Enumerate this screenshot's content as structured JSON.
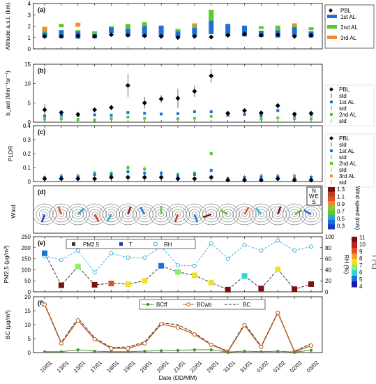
{
  "chart_data": [
    {
      "panel": "(a)",
      "type": "bar",
      "ylabel": "Altitude a.s.l. (km)",
      "ylim": [
        0,
        4
      ],
      "yticks": [
        "0",
        "1",
        "2",
        "3",
        "4"
      ],
      "categories": [
        "10/01",
        "13/01",
        "13/01",
        "17/01",
        "18/01",
        "19/01",
        "20/01",
        "20/01",
        "21/01",
        "22/01",
        "26/01",
        "31/01",
        "31/01",
        "01/02",
        "01/02",
        "02/02",
        "03/02"
      ],
      "legend": [
        "PBL",
        "1st AL",
        "2nd AL",
        "3rd AL"
      ],
      "pbl": [
        1.1,
        1.1,
        1.15,
        1.1,
        1.25,
        1.2,
        1.15,
        1.1,
        1.0,
        1.1,
        1.05,
        1.2,
        1.3,
        1.2,
        1.25,
        1.1,
        1.2
      ],
      "layers": {
        "al1": [
          [
            1.0,
            1.45
          ],
          [
            0.95,
            1.65
          ],
          [
            0.9,
            1.55
          ],
          [
            0.95,
            1.3
          ],
          [
            1.4,
            1.9
          ],
          [
            1.1,
            1.8
          ],
          [
            1.05,
            2.0
          ],
          [
            1.05,
            2.05
          ],
          [
            1.05,
            1.55
          ],
          [
            1.15,
            1.85
          ],
          [
            1.3,
            2.5
          ],
          [
            1.1,
            2.2
          ],
          [
            1.1,
            2.05
          ],
          [
            1.05,
            1.6
          ],
          [
            1.0,
            1.65
          ],
          [
            1.15,
            1.9
          ],
          [
            1.0,
            1.55
          ]
        ],
        "al2": [
          [
            1.45,
            1.6
          ],
          [
            1.9,
            2.2
          ],
          [
            1.55,
            1.65
          ],
          [
            1.3,
            1.55
          ],
          [
            1.9,
            2.0
          ],
          [
            1.8,
            2.2
          ],
          [
            2.0,
            2.35
          ],
          [
            null,
            null
          ],
          [
            1.55,
            1.75
          ],
          [
            1.85,
            2.0
          ],
          [
            2.5,
            3.45
          ],
          [
            null,
            null
          ],
          [
            null,
            null
          ],
          [
            1.75,
            2.0
          ],
          [
            1.65,
            2.05
          ],
          [
            1.9,
            2.05
          ],
          [
            1.65,
            1.9
          ]
        ],
        "al3": [
          [
            1.6,
            1.95
          ],
          [
            null,
            null
          ],
          [
            1.95,
            2.3
          ],
          [
            null,
            null
          ],
          [
            null,
            null
          ],
          [
            null,
            null
          ],
          [
            null,
            null
          ],
          [
            null,
            null
          ],
          [
            null,
            null
          ],
          [
            2.0,
            2.25
          ],
          [
            null,
            null
          ],
          [
            null,
            null
          ],
          [
            null,
            null
          ],
          [
            null,
            null
          ],
          [
            null,
            null
          ],
          [
            2.05,
            2.25
          ],
          [
            null,
            null
          ]
        ]
      }
    },
    {
      "panel": "(b)",
      "type": "scatter",
      "ylabel": "b_ael (Mm⁻¹sr⁻¹)",
      "ylim": [
        0,
        15
      ],
      "yticks": [
        "0",
        "5",
        "10",
        "15"
      ],
      "legend": [
        "PBL",
        "std",
        "1st AL",
        "std",
        "2nd AL",
        "std"
      ],
      "pbl": [
        3.2,
        2.5,
        2.0,
        3.2,
        3.8,
        9.5,
        5.0,
        6.0,
        6.2,
        8.0,
        12.0,
        2.3,
        3.0,
        2.4,
        4.3,
        2.1,
        2.3
      ],
      "pbl_std": [
        1.5,
        0.5,
        0.5,
        0.6,
        0.7,
        3.0,
        1.5,
        1.0,
        2.5,
        1.5,
        1.8,
        0.4,
        0.5,
        0.4,
        0.8,
        0.3,
        0.4
      ],
      "al1": [
        1.6,
        1.8,
        1.7,
        1.9,
        1.8,
        2.5,
        2.3,
        2.1,
        2.2,
        2.7,
        2.7,
        1.8,
        2.0,
        1.6,
        3.0,
        1.7,
        1.9
      ],
      "al2": [
        0.8,
        0.9,
        0.7,
        0.6,
        0.9,
        1.3,
        1.0,
        null,
        0.9,
        1.0,
        1.5,
        null,
        null,
        0.8,
        1.1,
        0.9,
        0.9
      ]
    },
    {
      "panel": "(c)",
      "type": "scatter",
      "ylabel": "PLDR",
      "ylim": [
        0,
        0.4
      ],
      "yticks": [
        "0",
        "0.1",
        "0.2",
        "0.3",
        "0.4"
      ],
      "legend": [
        "PBL",
        "std",
        "1st AL",
        "std",
        "2nd AL",
        "std",
        "3rd AL",
        "std"
      ],
      "pbl": [
        0.02,
        0.02,
        0.02,
        0.02,
        0.03,
        0.03,
        0.03,
        0.03,
        0.02,
        0.02,
        0.03,
        0.01,
        0.01,
        0.01,
        0.02,
        0.01,
        0.01
      ],
      "al1": [
        0.02,
        0.03,
        0.03,
        0.05,
        0.05,
        0.07,
        0.06,
        0.06,
        0.04,
        0.05,
        0.08,
        0.02,
        0.03,
        0.03,
        0.03,
        0.02,
        0.03
      ],
      "al2": [
        0.03,
        0.04,
        0.04,
        0.06,
        0.06,
        0.1,
        0.09,
        null,
        0.05,
        0.06,
        0.2,
        null,
        null,
        0.04,
        0.04,
        0.04,
        0.03
      ],
      "al3": [
        0.03,
        null,
        0.04,
        null,
        null,
        null,
        null,
        null,
        null,
        0.06,
        null,
        null,
        null,
        null,
        null,
        0.04,
        null
      ]
    },
    {
      "panel": "(d)",
      "type": "wind-rose",
      "ylabel": "Wind",
      "colorbar_label": "Wind speed (m/s)",
      "colorbar_ticks": [
        "1.3",
        "1.1",
        "0.9",
        "0.7",
        "0.5",
        "0.3"
      ],
      "compass": [
        "N",
        "W",
        "E",
        "S"
      ]
    },
    {
      "panel": "(e)",
      "type": "line",
      "ylabel_left": "PM2.5 (μg/m³)",
      "ylabel_right": "RH (%)",
      "ylabel_color": "T (°C)",
      "ylim_left": [
        0,
        250
      ],
      "ylim_right": [
        0,
        100
      ],
      "yticks_left": [
        "0",
        "50",
        "100",
        "150",
        "200",
        "250"
      ],
      "yticks_right": [
        "0",
        "20",
        "40",
        "60",
        "80",
        "100"
      ],
      "colorbar_ticks": [
        "11",
        "10",
        "9",
        "8",
        "7",
        "6",
        "5",
        "4"
      ],
      "legend": [
        "PM2.5",
        "T",
        "RH"
      ],
      "pm25": [
        175,
        30,
        115,
        32,
        38,
        35,
        50,
        118,
        90,
        75,
        42,
        10,
        72,
        15,
        102,
        12,
        35
      ],
      "temperature": [
        5,
        10.5,
        7.5,
        10,
        9,
        8.5,
        8.5,
        5,
        7,
        8,
        8.5,
        10.5,
        6.5,
        10.5,
        8,
        11,
        10.5
      ],
      "rh": [
        65,
        58,
        75,
        35,
        70,
        62,
        62,
        82,
        48,
        47,
        88,
        60,
        85,
        75,
        93,
        75,
        82
      ]
    },
    {
      "panel": "(f)",
      "type": "line",
      "ylabel": "BC (μg/m³)",
      "ylim": [
        0,
        20
      ],
      "yticks": [
        "0",
        "5",
        "10",
        "15",
        "20"
      ],
      "legend": [
        "BCff",
        "BCwb",
        "BC"
      ],
      "xlabel": "Date (DD/MM)",
      "categories": [
        "10/01",
        "13/01",
        "13/01",
        "17/01",
        "18/01",
        "19/01",
        "20/01",
        "20/01",
        "21/01",
        "22/01",
        "26/01",
        "31/01",
        "31/01",
        "01/02",
        "01/02",
        "02/02",
        "03/02"
      ],
      "bc_ff": [
        0.3,
        0.3,
        1.0,
        0.5,
        0.3,
        0.3,
        0.5,
        0.7,
        0.8,
        1.0,
        1.0,
        0.2,
        0.5,
        0.3,
        0.5,
        0.2,
        0.8
      ],
      "bc_wb": [
        17.2,
        3.3,
        11.5,
        4.8,
        1.5,
        1.5,
        3.3,
        10.2,
        9.0,
        6.5,
        2.8,
        0.3,
        9.8,
        2.0,
        14.2,
        0.3,
        2.5
      ],
      "bc": [
        17.5,
        3.6,
        12.3,
        5.3,
        1.8,
        2.0,
        3.8,
        10.6,
        10.0,
        7.0,
        3.0,
        0.5,
        10.3,
        2.3,
        14.5,
        0.5,
        3.2
      ]
    }
  ],
  "colors": {
    "pbl": "#000000",
    "al1": "#1f6fd6",
    "al2": "#5bc830",
    "al3": "#f58a2a",
    "rh": "#2aa7d8",
    "bcff": "#3f8f2f",
    "bcwb": "#c25a1a",
    "bc": "#333333"
  }
}
